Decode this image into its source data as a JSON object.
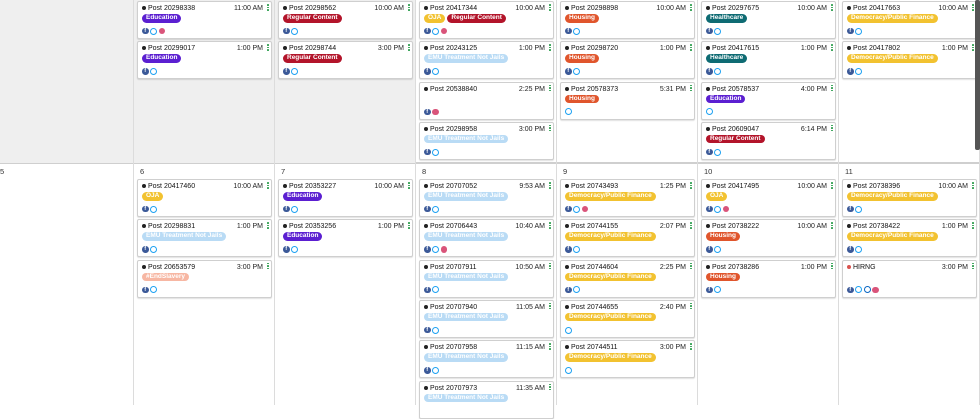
{
  "week1": {
    "days": [
      {
        "label": "",
        "posts": []
      },
      {
        "label": "",
        "posts": [
          {
            "title": "Post 20298338",
            "time": "11:00 AM",
            "tags": [
              "Education"
            ],
            "icons": [
              "facebook-icon",
              "twitter-icon",
              "instagram-icon"
            ]
          },
          {
            "title": "Post 20299017",
            "time": "1:00 PM",
            "tags": [
              "Education"
            ],
            "icons": [
              "facebook-icon",
              "twitter-icon"
            ]
          }
        ]
      },
      {
        "label": "",
        "posts": [
          {
            "title": "Post 20298562",
            "time": "10:00 AM",
            "tags": [
              "Regular Content"
            ],
            "icons": [
              "facebook-icon",
              "twitter-icon"
            ]
          },
          {
            "title": "Post 20298744",
            "time": "3:00 PM",
            "tags": [
              "Regular Content"
            ],
            "icons": [
              "facebook-icon",
              "twitter-icon"
            ]
          }
        ]
      },
      {
        "label": "",
        "posts": [
          {
            "title": "Post 20417344",
            "time": "10:00 AM",
            "tags": [
              "OJA",
              "Regular Content"
            ],
            "icons": [
              "facebook-icon",
              "twitter-icon",
              "instagram-icon"
            ]
          },
          {
            "title": "Post 20243125",
            "time": "1:00 PM",
            "tags": [
              "EMU Treatment Not Jails"
            ],
            "icons": [
              "facebook-icon",
              "twitter-icon"
            ]
          },
          {
            "title": "Post 20538840",
            "time": "2:25 PM",
            "tags": [],
            "icons": [
              "facebook-icon",
              "instagram-icon"
            ]
          },
          {
            "title": "Post 20298958",
            "time": "3:00 PM",
            "tags": [
              "EMU Treatment Not Jails"
            ],
            "icons": [
              "facebook-icon",
              "twitter-icon"
            ]
          }
        ]
      },
      {
        "label": "",
        "posts": [
          {
            "title": "Post 20298898",
            "time": "10:00 AM",
            "tags": [
              "Housing"
            ],
            "icons": [
              "facebook-icon",
              "twitter-icon"
            ]
          },
          {
            "title": "Post 20298720",
            "time": "1:00 PM",
            "tags": [
              "Housing"
            ],
            "icons": [
              "facebook-icon",
              "twitter-icon"
            ]
          },
          {
            "title": "Post 20578373",
            "time": "5:31 PM",
            "tags": [
              "Housing"
            ],
            "icons": [
              "twitter-icon"
            ]
          }
        ]
      },
      {
        "label": "",
        "posts": [
          {
            "title": "Post 20297675",
            "time": "10:00 AM",
            "tags": [
              "Healthcare"
            ],
            "icons": [
              "facebook-icon",
              "twitter-icon"
            ]
          },
          {
            "title": "Post 20417615",
            "time": "1:00 PM",
            "tags": [
              "Healthcare"
            ],
            "icons": [
              "facebook-icon",
              "twitter-icon"
            ]
          },
          {
            "title": "Post 20578537",
            "time": "4:00 PM",
            "tags": [
              "Education"
            ],
            "icons": [
              "twitter-icon"
            ]
          },
          {
            "title": "Post 20609047",
            "time": "6:14 PM",
            "tags": [
              "Regular Content"
            ],
            "icons": [
              "facebook-icon",
              "twitter-icon"
            ]
          }
        ]
      },
      {
        "label": "",
        "posts": [
          {
            "title": "Post 20417663",
            "time": "10:00 AM",
            "tags": [
              "Democracy/Public Finance"
            ],
            "icons": [
              "facebook-icon",
              "twitter-icon"
            ]
          },
          {
            "title": "Post 20417802",
            "time": "1:00 PM",
            "tags": [
              "Democracy/Public Finance"
            ],
            "icons": [
              "facebook-icon",
              "twitter-icon"
            ]
          }
        ]
      }
    ]
  },
  "week2": {
    "days": [
      {
        "label": "5",
        "posts": []
      },
      {
        "label": "6",
        "posts": [
          {
            "title": "Post 20417460",
            "time": "10:00 AM",
            "tags": [
              "OJA"
            ],
            "icons": [
              "facebook-icon",
              "twitter-icon"
            ]
          },
          {
            "title": "Post 20298831",
            "time": "1:00 PM",
            "tags": [
              "EMU Treatment Not Jails"
            ],
            "icons": [
              "facebook-icon",
              "twitter-icon"
            ]
          },
          {
            "title": "Post 20653579",
            "time": "3:00 PM",
            "tags": [
              "#EndSlavery"
            ],
            "icons": [
              "facebook-icon",
              "twitter-icon"
            ]
          }
        ]
      },
      {
        "label": "7",
        "posts": [
          {
            "title": "Post 20353227",
            "time": "10:00 AM",
            "tags": [
              "Education"
            ],
            "icons": [
              "facebook-icon",
              "twitter-icon"
            ]
          },
          {
            "title": "Post 20353256",
            "time": "1:00 PM",
            "tags": [
              "Education"
            ],
            "icons": [
              "facebook-icon",
              "twitter-icon"
            ]
          }
        ]
      },
      {
        "label": "8",
        "posts": [
          {
            "title": "Post 20707052",
            "time": "9:53 AM",
            "tags": [
              "EMU Treatment Not Jails"
            ],
            "icons": [
              "facebook-icon",
              "twitter-icon"
            ]
          },
          {
            "title": "Post 20706443",
            "time": "10:40 AM",
            "tags": [
              "EMU Treatment Not Jails"
            ],
            "icons": [
              "facebook-icon",
              "twitter-icon",
              "instagram-icon"
            ]
          },
          {
            "title": "Post 20707911",
            "time": "10:50 AM",
            "tags": [
              "EMU Treatment Not Jails"
            ],
            "icons": [
              "facebook-icon",
              "twitter-icon"
            ]
          },
          {
            "title": "Post 20707940",
            "time": "11:05 AM",
            "tags": [
              "EMU Treatment Not Jails"
            ],
            "icons": [
              "facebook-icon",
              "twitter-icon"
            ]
          },
          {
            "title": "Post 20707958",
            "time": "11:15 AM",
            "tags": [
              "EMU Treatment Not Jails"
            ],
            "icons": [
              "facebook-icon",
              "twitter-icon"
            ]
          },
          {
            "title": "Post 20707973",
            "time": "11:35 AM",
            "tags": [
              "EMU Treatment Not Jails"
            ],
            "icons": []
          }
        ]
      },
      {
        "label": "9",
        "posts": [
          {
            "title": "Post 20743493",
            "time": "1:25 PM",
            "tags": [
              "Democracy/Public Finance"
            ],
            "icons": [
              "facebook-icon",
              "twitter-icon",
              "instagram-icon"
            ]
          },
          {
            "title": "Post 20744155",
            "time": "2:07 PM",
            "tags": [
              "Democracy/Public Finance"
            ],
            "icons": [
              "facebook-icon",
              "twitter-icon"
            ]
          },
          {
            "title": "Post 20744604",
            "time": "2:25 PM",
            "tags": [
              "Democracy/Public Finance"
            ],
            "icons": [
              "facebook-icon",
              "twitter-icon"
            ]
          },
          {
            "title": "Post 20744655",
            "time": "2:40 PM",
            "tags": [
              "Democracy/Public Finance"
            ],
            "icons": [
              "twitter-icon"
            ]
          },
          {
            "title": "Post 20744511",
            "time": "3:00 PM",
            "tags": [
              "Democracy/Public Finance"
            ],
            "icons": [
              "twitter-icon"
            ]
          }
        ]
      },
      {
        "label": "10",
        "posts": [
          {
            "title": "Post 20417495",
            "time": "10:00 AM",
            "tags": [
              "OJA"
            ],
            "icons": [
              "facebook-icon",
              "twitter-icon",
              "instagram-icon"
            ]
          },
          {
            "title": "Post 20738222",
            "time": "10:00 AM",
            "tags": [
              "Housing"
            ],
            "icons": [
              "facebook-icon",
              "twitter-icon"
            ]
          },
          {
            "title": "Post 20738286",
            "time": "1:00 PM",
            "tags": [
              "Housing"
            ],
            "icons": [
              "facebook-icon",
              "twitter-icon"
            ]
          }
        ]
      },
      {
        "label": "11",
        "posts": [
          {
            "title": "Post 20738396",
            "time": "10:00 AM",
            "tags": [
              "Democracy/Public Finance"
            ],
            "icons": [
              "facebook-icon",
              "twitter-icon"
            ]
          },
          {
            "title": "Post 20738422",
            "time": "1:00 PM",
            "tags": [
              "Democracy/Public Finance"
            ],
            "icons": [
              "facebook-icon",
              "twitter-icon"
            ]
          },
          {
            "title": "HIRNG",
            "time": "3:00 PM",
            "tags": [],
            "icons": [
              "facebook-icon",
              "twitter-icon",
              "linkedin-icon",
              "instagram-icon"
            ],
            "status": "red"
          }
        ]
      }
    ]
  },
  "tag_colors": {
    "Education": "#5b1fd1",
    "Regular Content": "#b3142a",
    "OJA": "#f2c230",
    "EMU Treatment Not Jails": "#b9dbf5",
    "Housing": "#e0552c",
    "Healthcare": "#0e6b73",
    "Democracy/Public Finance": "#f2c230",
    "#EndSlavery": "#f7b7a3"
  }
}
